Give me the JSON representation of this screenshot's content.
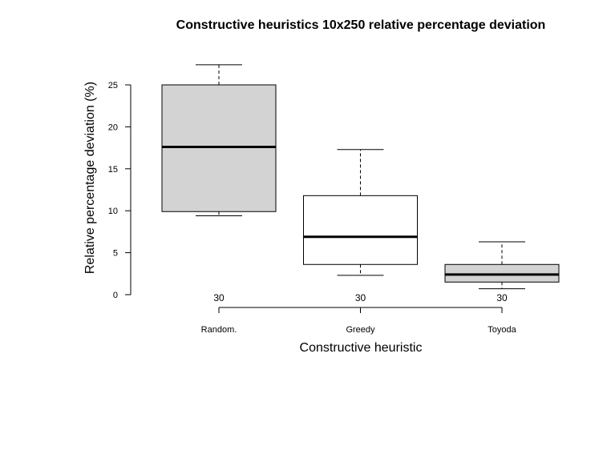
{
  "chart_data": {
    "type": "box",
    "title": "Constructive heuristics 10x250 relative percentage deviation",
    "xlabel": "Constructive heuristic",
    "ylabel": "Relative percentage deviation (%)",
    "ylim": [
      0,
      27.5
    ],
    "yticks": [
      "0",
      "5",
      "10",
      "15",
      "20",
      "25"
    ],
    "grid": false,
    "legend": "none",
    "categories": [
      "Random.",
      "Greedy",
      "Toyoda"
    ],
    "counts": [
      "30",
      "30",
      "30"
    ],
    "boxes": [
      {
        "category": "Random.",
        "min": 9.4,
        "q1": 9.9,
        "median": 17.6,
        "q3": 25.0,
        "max": 27.4,
        "fill": "#d3d3d3"
      },
      {
        "category": "Greedy",
        "min": 2.3,
        "q1": 3.6,
        "median": 6.9,
        "q3": 11.8,
        "max": 17.3,
        "fill": "#ffffff"
      },
      {
        "category": "Toyoda",
        "min": 0.7,
        "q1": 1.5,
        "median": 2.4,
        "q3": 3.6,
        "max": 6.3,
        "fill": "#d3d3d3"
      }
    ]
  }
}
